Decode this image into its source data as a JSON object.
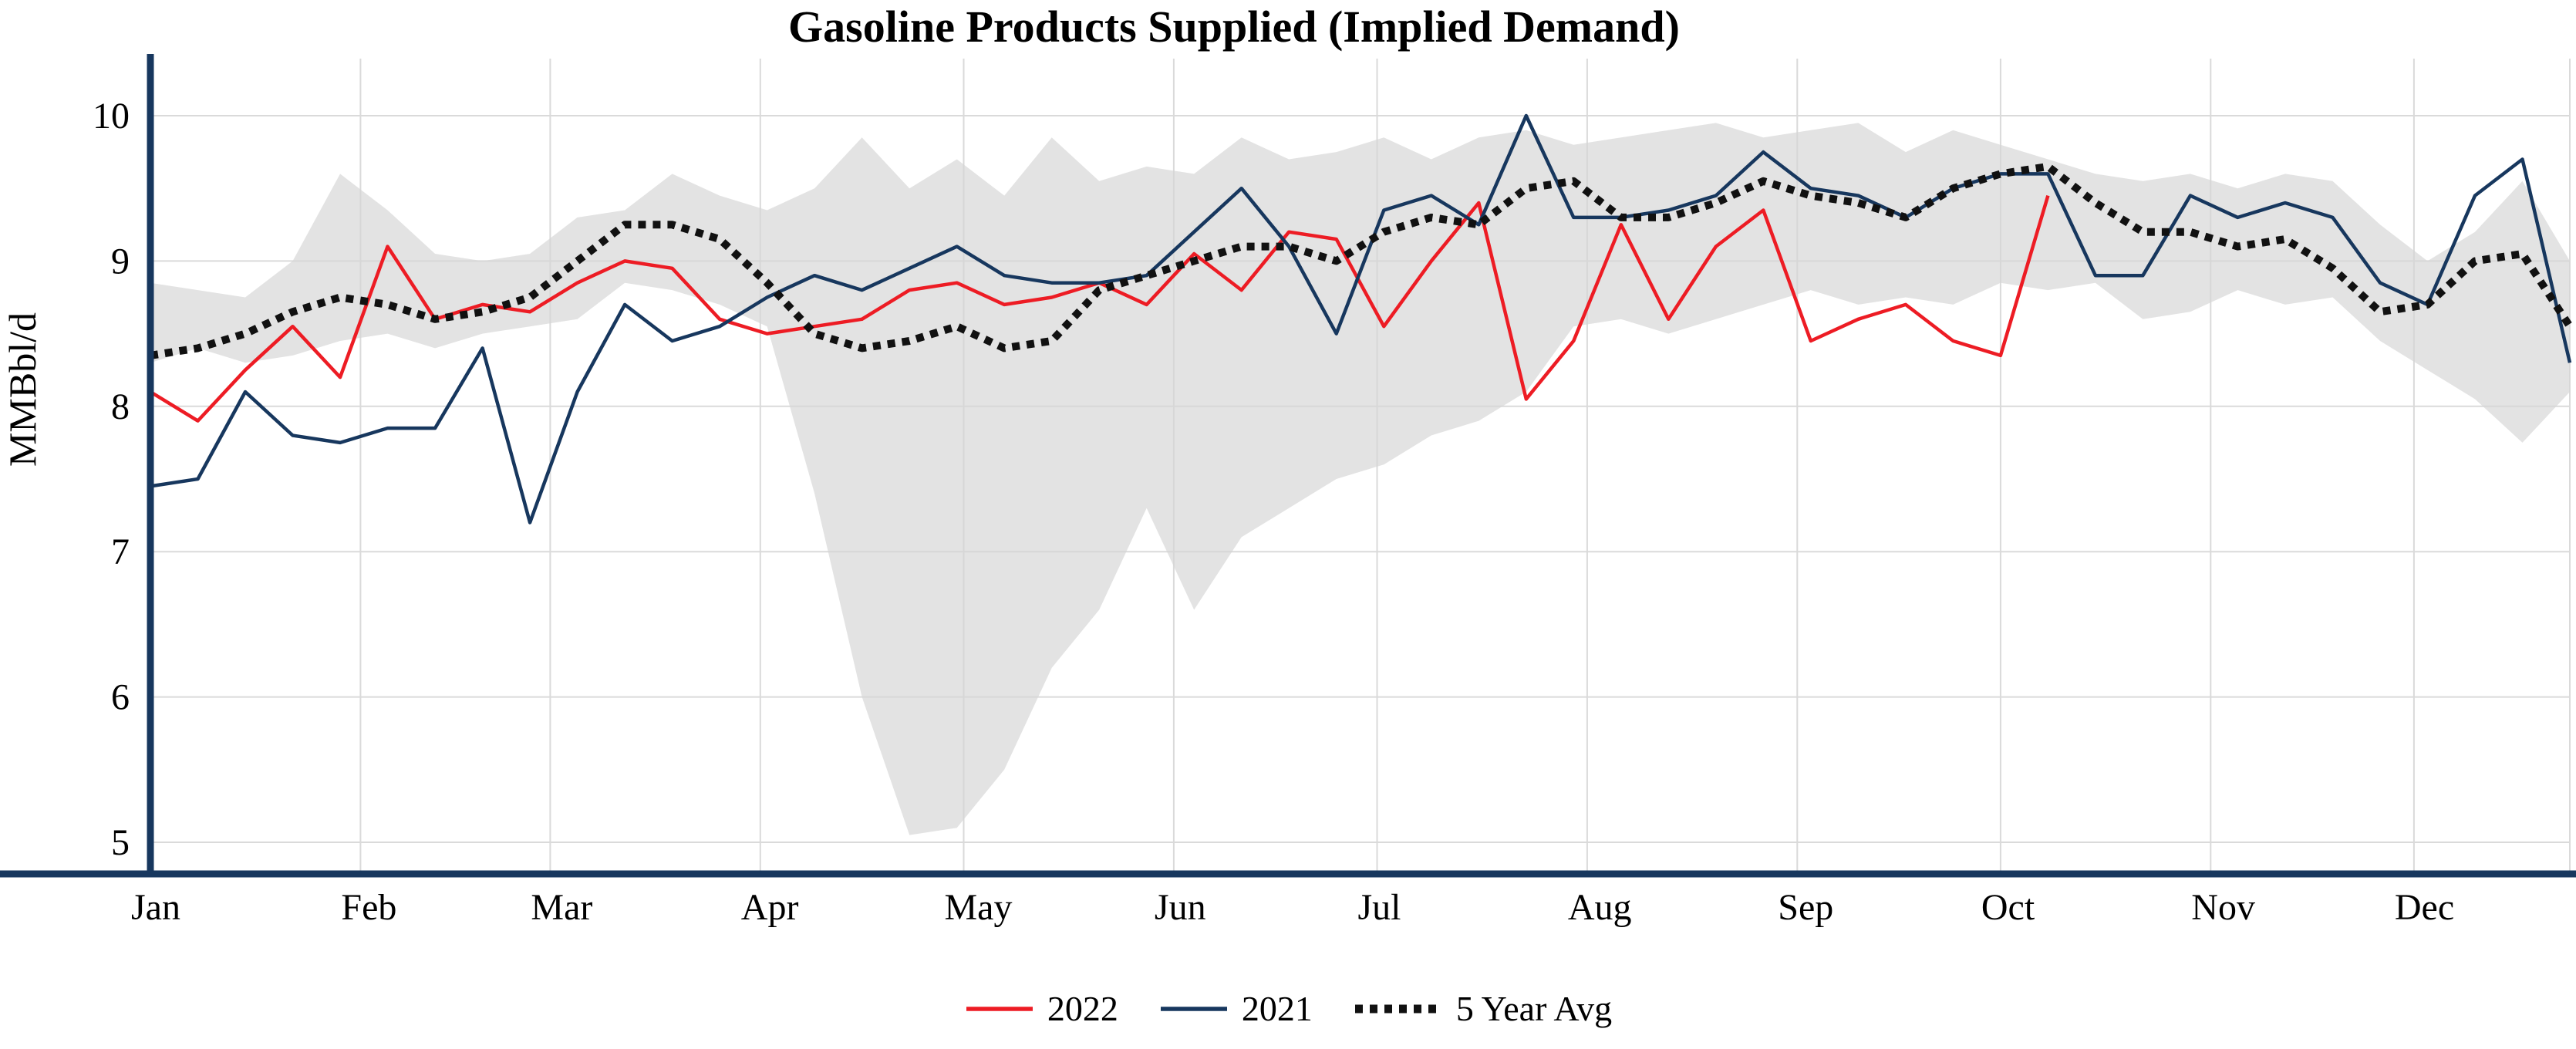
{
  "chart_data": {
    "type": "line",
    "title": "Gasoline Products Supplied (Implied Demand)",
    "ylabel": "MMBbl/d",
    "xlabel": "",
    "ylim": [
      4.8,
      10.4
    ],
    "y_ticks": [
      5,
      6,
      7,
      8,
      9,
      10
    ],
    "grid": true,
    "legend_position": "bottom",
    "weeks": 52,
    "months": [
      "Jan",
      "Feb",
      "Mar",
      "Apr",
      "May",
      "Jun",
      "Jul",
      "Aug",
      "Sep",
      "Oct",
      "Nov",
      "Dec"
    ],
    "month_start_days": [
      0,
      31,
      59,
      90,
      120,
      151,
      181,
      212,
      243,
      273,
      304,
      334
    ],
    "series": [
      {
        "name": "2022",
        "color": "#ed1c24",
        "style": "solid",
        "values": [
          8.1,
          7.9,
          8.25,
          8.55,
          8.2,
          9.1,
          8.6,
          8.7,
          8.65,
          8.85,
          9.0,
          8.95,
          8.6,
          8.5,
          8.55,
          8.6,
          8.8,
          8.85,
          8.7,
          8.75,
          8.85,
          8.7,
          9.05,
          8.8,
          9.2,
          9.15,
          8.55,
          9.0,
          9.4,
          8.05,
          8.45,
          9.25,
          8.6,
          9.1,
          9.35,
          8.45,
          8.6,
          8.7,
          8.45,
          8.35,
          9.45
        ]
      },
      {
        "name": "2021",
        "color": "#17375e",
        "style": "solid",
        "values": [
          7.45,
          7.5,
          8.1,
          7.8,
          7.75,
          7.85,
          7.85,
          8.4,
          7.2,
          8.1,
          8.7,
          8.45,
          8.55,
          8.75,
          8.9,
          8.8,
          8.95,
          9.1,
          8.9,
          8.85,
          8.85,
          8.9,
          9.2,
          9.5,
          9.1,
          8.5,
          9.35,
          9.45,
          9.25,
          10.0,
          9.3,
          9.3,
          9.35,
          9.45,
          9.75,
          9.5,
          9.45,
          9.3,
          9.5,
          9.6,
          9.6,
          8.9,
          8.9,
          9.45,
          9.3,
          9.4,
          9.3,
          8.85,
          8.7,
          9.45,
          9.7,
          8.3
        ]
      },
      {
        "name": "5 Year Avg",
        "color": "#111111",
        "style": "dotted",
        "values": [
          8.35,
          8.4,
          8.5,
          8.65,
          8.75,
          8.7,
          8.6,
          8.65,
          8.75,
          9.0,
          9.25,
          9.25,
          9.15,
          8.85,
          8.5,
          8.4,
          8.45,
          8.55,
          8.4,
          8.45,
          8.8,
          8.9,
          9.0,
          9.1,
          9.1,
          9.0,
          9.2,
          9.3,
          9.25,
          9.5,
          9.55,
          9.3,
          9.3,
          9.4,
          9.55,
          9.45,
          9.4,
          9.3,
          9.5,
          9.6,
          9.65,
          9.4,
          9.2,
          9.2,
          9.1,
          9.15,
          8.95,
          8.65,
          8.7,
          9.0,
          9.05,
          8.55
        ]
      }
    ],
    "band": {
      "name": "5-year-range",
      "color": "#e3e3e3",
      "upper": [
        8.85,
        8.8,
        8.75,
        9.0,
        9.6,
        9.35,
        9.05,
        9.0,
        9.05,
        9.3,
        9.35,
        9.6,
        9.45,
        9.35,
        9.5,
        9.85,
        9.5,
        9.7,
        9.45,
        9.85,
        9.55,
        9.65,
        9.6,
        9.85,
        9.7,
        9.75,
        9.85,
        9.7,
        9.85,
        9.9,
        9.8,
        9.85,
        9.9,
        9.95,
        9.85,
        9.9,
        9.95,
        9.75,
        9.9,
        9.8,
        9.7,
        9.6,
        9.55,
        9.6,
        9.5,
        9.6,
        9.55,
        9.25,
        9.0,
        9.2,
        9.55,
        9.0
      ],
      "lower": [
        8.3,
        8.4,
        8.3,
        8.35,
        8.45,
        8.5,
        8.4,
        8.5,
        8.55,
        8.6,
        8.85,
        8.8,
        8.7,
        8.55,
        7.4,
        6.0,
        5.05,
        5.1,
        5.5,
        6.2,
        6.6,
        7.3,
        6.6,
        7.1,
        7.3,
        7.5,
        7.6,
        7.8,
        7.9,
        8.1,
        8.55,
        8.6,
        8.5,
        8.6,
        8.7,
        8.8,
        8.7,
        8.75,
        8.7,
        8.85,
        8.8,
        8.85,
        8.6,
        8.65,
        8.8,
        8.7,
        8.75,
        8.45,
        8.25,
        8.05,
        7.75,
        8.1
      ]
    },
    "colors": {
      "grid": "#d6d6d6",
      "spine": "#17375e",
      "background": "#ffffff"
    }
  }
}
